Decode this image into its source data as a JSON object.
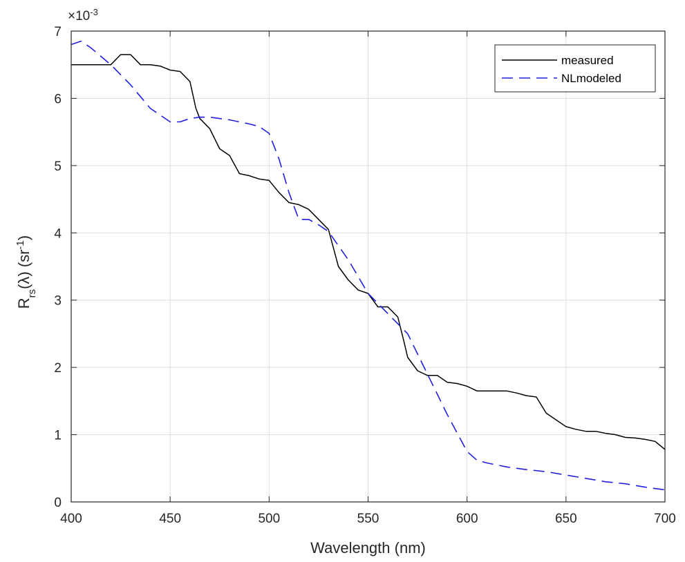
{
  "chart_data": {
    "type": "line",
    "xlabel": "Wavelength (nm)",
    "ylabel": {
      "base": "R",
      "subscript": "rs",
      "middle": "(λ) (sr",
      "superscript": "-1",
      "end": ")"
    },
    "y_exponent": {
      "prefix": "×10",
      "power": "-3"
    },
    "xlim": [
      400,
      700
    ],
    "ylim": [
      0,
      7
    ],
    "xticks": [
      400,
      450,
      500,
      550,
      600,
      650,
      700
    ],
    "yticks": [
      0,
      1,
      2,
      3,
      4,
      5,
      6,
      7
    ],
    "y_scale_factor": 0.001,
    "grid": true,
    "legend_position": "top-right",
    "series": [
      {
        "name": "measured",
        "color": "#000000",
        "style": "solid",
        "x": [
          400,
          410,
          420,
          425,
          430,
          435,
          440,
          445,
          450,
          455,
          460,
          463,
          465,
          470,
          475,
          480,
          485,
          490,
          495,
          500,
          505,
          510,
          515,
          520,
          525,
          530,
          535,
          540,
          545,
          550,
          555,
          560,
          565,
          568,
          570,
          575,
          580,
          585,
          590,
          595,
          600,
          605,
          610,
          615,
          620,
          625,
          630,
          635,
          640,
          645,
          650,
          655,
          660,
          665,
          670,
          675,
          680,
          685,
          690,
          695,
          700
        ],
        "y": [
          6.5,
          6.5,
          6.5,
          6.65,
          6.65,
          6.5,
          6.5,
          6.48,
          6.42,
          6.4,
          6.25,
          5.85,
          5.7,
          5.55,
          5.25,
          5.15,
          4.88,
          4.85,
          4.8,
          4.78,
          4.6,
          4.45,
          4.42,
          4.35,
          4.2,
          4.05,
          3.5,
          3.3,
          3.15,
          3.1,
          2.9,
          2.9,
          2.75,
          2.4,
          2.15,
          1.95,
          1.88,
          1.88,
          1.78,
          1.76,
          1.72,
          1.65,
          1.65,
          1.65,
          1.65,
          1.62,
          1.58,
          1.56,
          1.32,
          1.22,
          1.12,
          1.08,
          1.05,
          1.05,
          1.02,
          1.0,
          0.96,
          0.95,
          0.93,
          0.9,
          0.78
        ]
      },
      {
        "name": "NLmodeled",
        "color": "#1f1fde",
        "style": "dashed",
        "x": [
          400,
          405,
          410,
          420,
          430,
          440,
          450,
          455,
          460,
          465,
          470,
          480,
          490,
          495,
          500,
          505,
          510,
          515,
          520,
          525,
          530,
          540,
          550,
          560,
          570,
          575,
          580,
          590,
          600,
          605,
          610,
          620,
          630,
          640,
          650,
          660,
          670,
          680,
          690,
          700
        ],
        "y": [
          6.8,
          6.85,
          6.75,
          6.5,
          6.2,
          5.85,
          5.65,
          5.65,
          5.7,
          5.72,
          5.72,
          5.68,
          5.62,
          5.58,
          5.48,
          5.1,
          4.6,
          4.2,
          4.2,
          4.12,
          4.02,
          3.6,
          3.1,
          2.8,
          2.5,
          2.2,
          1.9,
          1.3,
          0.75,
          0.62,
          0.58,
          0.52,
          0.48,
          0.45,
          0.4,
          0.35,
          0.3,
          0.27,
          0.22,
          0.18
        ]
      }
    ]
  }
}
